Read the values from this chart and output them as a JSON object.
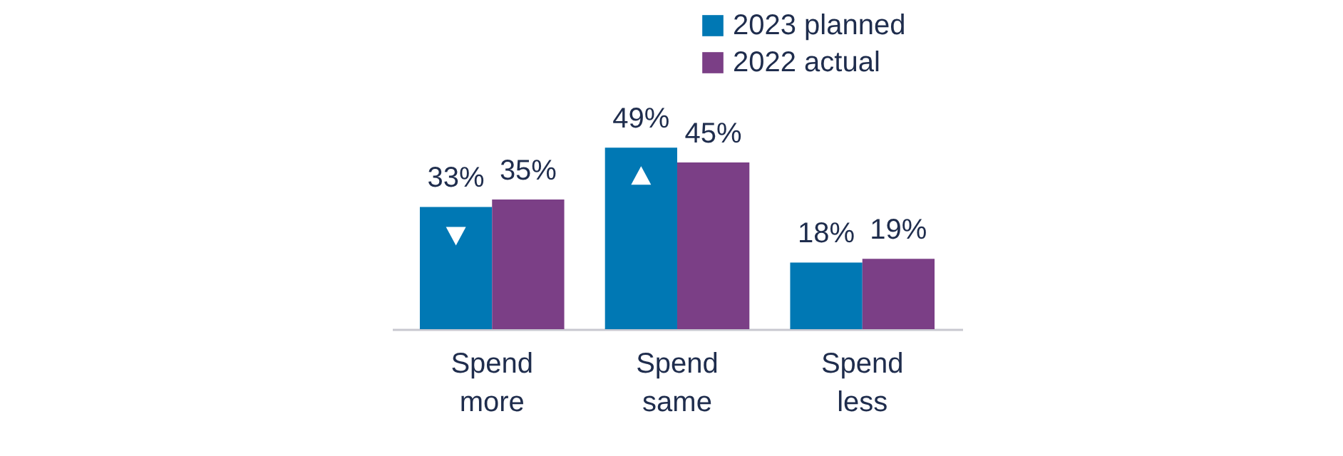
{
  "chart_data": {
    "type": "bar",
    "categories": [
      "Spend more",
      "Spend same",
      "Spend less"
    ],
    "series": [
      {
        "name": "2023 planned",
        "color": "#0078b4",
        "values": [
          33,
          49,
          18
        ],
        "value_labels": [
          "33%",
          "49%",
          "18%"
        ]
      },
      {
        "name": "2022 actual",
        "color": "#7b3f86",
        "values": [
          35,
          45,
          19
        ],
        "value_labels": [
          "35%",
          "45%",
          "19%"
        ]
      }
    ],
    "legend": "top right"
  }
}
